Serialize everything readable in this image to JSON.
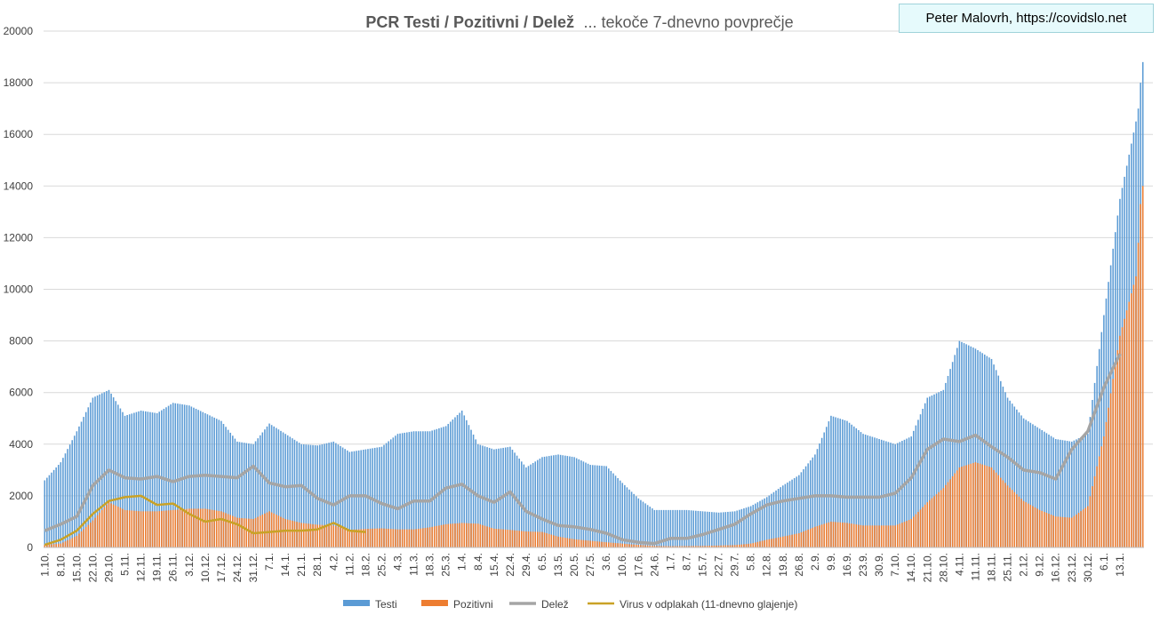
{
  "credit": "Peter Malovrh, https://covidslo.net",
  "chart_data": {
    "type": "bar",
    "title": "PCR Testi / Pozitivni / Delež",
    "subtitle": "... tekoče 7-dnevno povprečje",
    "ylim": [
      0,
      20000
    ],
    "yticks": [
      0,
      2000,
      4000,
      6000,
      8000,
      10000,
      12000,
      14000,
      16000,
      18000,
      20000
    ],
    "grid": true,
    "legend_position": "bottom",
    "x_tick_labels": [
      "1.10.",
      "8.10.",
      "15.10.",
      "22.10.",
      "29.10.",
      "5.11.",
      "12.11.",
      "19.11.",
      "26.11.",
      "3.12.",
      "10.12.",
      "17.12.",
      "24.12.",
      "31.12.",
      "7.1.",
      "14.1.",
      "21.1.",
      "28.1.",
      "4.2.",
      "11.2.",
      "18.2.",
      "25.2.",
      "4.3.",
      "11.3.",
      "18.3.",
      "25.3.",
      "1.4.",
      "8.4.",
      "15.4.",
      "22.4.",
      "29.4.",
      "6.5.",
      "13.5.",
      "20.5.",
      "27.5.",
      "3.6.",
      "10.6.",
      "17.6.",
      "24.6.",
      "1.7.",
      "8.7.",
      "15.7.",
      "22.7.",
      "29.7.",
      "5.8.",
      "12.8.",
      "19.8.",
      "26.8.",
      "2.9.",
      "9.9.",
      "16.9.",
      "23.9.",
      "30.9.",
      "7.10.",
      "14.10.",
      "21.10.",
      "28.10.",
      "4.11.",
      "11.11.",
      "18.11.",
      "25.11.",
      "2.12.",
      "9.12.",
      "16.12.",
      "23.12.",
      "30.12.",
      "6.1.",
      "13.1."
    ],
    "series": [
      {
        "name": "Testi",
        "type": "bar",
        "color": "#5b9bd5",
        "weekly_values": [
          2600,
          3300,
          4500,
          5800,
          6100,
          5100,
          5300,
          5200,
          5600,
          5500,
          5200,
          4900,
          4100,
          4000,
          4800,
          4400,
          4000,
          3950,
          4100,
          3700,
          3800,
          3900,
          4400,
          4500,
          4500,
          4700,
          5300,
          4000,
          3800,
          3900,
          3100,
          3500,
          3600,
          3500,
          3200,
          3150,
          2500,
          1900,
          1450,
          1450,
          1450,
          1400,
          1350,
          1400,
          1600,
          1950,
          2400,
          2800,
          3600,
          5100,
          4900,
          4400,
          4200,
          4000,
          4300,
          5800,
          6100,
          8000,
          7700,
          7300,
          5800,
          5000,
          4600,
          4200,
          4100,
          4400,
          9000,
          13500
        ],
        "final_values": [
          16500,
          17000,
          18000,
          18800
        ]
      },
      {
        "name": "Pozitivni",
        "type": "bar",
        "color": "#ed7d31",
        "weekly_values": [
          100,
          150,
          450,
          1050,
          1750,
          1450,
          1400,
          1400,
          1450,
          1500,
          1500,
          1400,
          1150,
          1100,
          1400,
          1100,
          950,
          880,
          850,
          680,
          720,
          740,
          700,
          700,
          780,
          900,
          950,
          920,
          730,
          680,
          620,
          600,
          420,
          320,
          260,
          200,
          150,
          100,
          60,
          50,
          55,
          60,
          75,
          90,
          150,
          300,
          420,
          550,
          800,
          1000,
          950,
          850,
          850,
          850,
          1100,
          1750,
          2300,
          3100,
          3300,
          3100,
          2400,
          1800,
          1450,
          1200,
          1150,
          1600,
          4300,
          8200
        ],
        "final_values": [
          10500,
          11800,
          13300,
          14000
        ]
      },
      {
        "name": "Delež",
        "type": "line",
        "color": "#a5a5a5",
        "values": [
          650,
          900,
          1200,
          2400,
          3000,
          2700,
          2650,
          2750,
          2550,
          2750,
          2800,
          2750,
          2700,
          3150,
          2500,
          2350,
          2400,
          1900,
          1650,
          2000,
          2000,
          1700,
          1500,
          1800,
          1800,
          2300,
          2450,
          2000,
          1750,
          2150,
          1400,
          1100,
          850,
          800,
          700,
          550,
          300,
          200,
          150,
          350,
          350,
          500,
          700,
          900,
          1300,
          1650,
          1800,
          1900,
          2000,
          2000,
          1950,
          1950,
          1950,
          2100,
          2700,
          3800,
          4200,
          4100,
          4350,
          3900,
          3500,
          3000,
          2900,
          2650,
          3800,
          4500,
          6200,
          7500
        ]
      },
      {
        "name": "Virus v odplakah (11-dnevno glajenje)",
        "type": "line",
        "color": "#c9a227",
        "values": [
          100,
          300,
          650,
          1300,
          1800,
          1950,
          2000,
          1650,
          1700,
          1300,
          1000,
          1100,
          900,
          550,
          600,
          650,
          650,
          700,
          950,
          650,
          600
        ]
      }
    ]
  }
}
